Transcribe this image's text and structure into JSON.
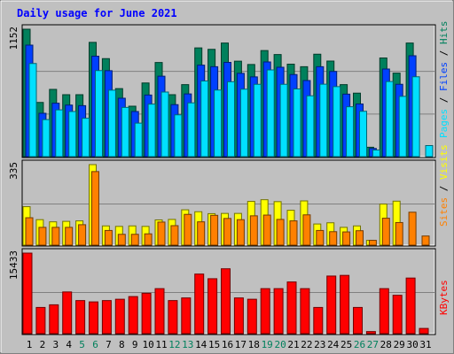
{
  "title": "Daily usage for June 2021",
  "colors": {
    "background": "#C0C0C0",
    "panel": "#C0C0C0",
    "title": "#0000FF",
    "hits": "#00805C",
    "files": "#0040FF",
    "pages": "#00E0FF",
    "visits": "#FFFF00",
    "sites": "#FF8000",
    "kbytes": "#FF0000",
    "day_weekday": "#000000",
    "day_weekend": "#00805C"
  },
  "chart_data": [
    {
      "type": "bar",
      "name": "hits-files-pages",
      "ymax_label": "1152",
      "ylim": [
        0,
        1152
      ],
      "legend": [
        {
          "label": "Hits",
          "color": "#00805C"
        },
        {
          "label": "Files",
          "color": "#0040FF"
        },
        {
          "label": "Pages",
          "color": "#00E0FF"
        }
      ],
      "series": [
        {
          "name": "Hits",
          "values": [
            1152,
            490,
            608,
            560,
            560,
            1033,
            886,
            615,
            456,
            666,
            851,
            560,
            651,
            983,
            970,
            1027,
            863,
            833,
            959,
            923,
            836,
            813,
            926,
            864,
            651,
            574,
            85,
            892,
            755,
            1027,
            0
          ]
        },
        {
          "name": "Files",
          "values": [
            1008,
            392,
            483,
            466,
            461,
            908,
            777,
            528,
            408,
            557,
            727,
            470,
            567,
            827,
            813,
            852,
            753,
            721,
            856,
            808,
            742,
            688,
            813,
            770,
            565,
            476,
            74,
            792,
            654,
            912,
            0
          ]
        },
        {
          "name": "Pages",
          "values": [
            842,
            335,
            423,
            408,
            347,
            778,
            601,
            445,
            303,
            475,
            584,
            378,
            486,
            684,
            602,
            677,
            610,
            654,
            784,
            654,
            612,
            550,
            655,
            633,
            451,
            410,
            60,
            679,
            545,
            722,
            100
          ]
        }
      ]
    },
    {
      "type": "bar",
      "name": "visits-sites",
      "ymax_label": "335",
      "ylim": [
        0,
        335
      ],
      "legend": [
        {
          "label": "Visits",
          "color": "#FFFF00"
        },
        {
          "label": "Sites",
          "color": "#FF8000"
        }
      ],
      "series": [
        {
          "name": "Visits",
          "values": [
            160,
            106,
            97,
            99,
            101,
            335,
            80,
            78,
            80,
            78,
            105,
            107,
            147,
            139,
            131,
            132,
            132,
            182,
            189,
            181,
            145,
            184,
            88,
            93,
            74,
            80,
            20,
            171,
            183,
            0,
            0
          ]
        },
        {
          "name": "Sites",
          "values": [
            114,
            74,
            74,
            74,
            85,
            306,
            61,
            45,
            45,
            47,
            96,
            81,
            128,
            97,
            124,
            111,
            106,
            122,
            125,
            107,
            101,
            126,
            61,
            56,
            55,
            60,
            20,
            112,
            94,
            137,
            38
          ]
        }
      ]
    },
    {
      "type": "bar",
      "name": "kbytes",
      "ymax_label": "15433",
      "ylim": [
        0,
        15433
      ],
      "legend": [
        {
          "label": "KBytes",
          "color": "#FF0000"
        }
      ],
      "series": [
        {
          "name": "KBytes",
          "values": [
            15433,
            5019,
            5527,
            7994,
            6338,
            6084,
            6338,
            6592,
            7105,
            7739,
            8626,
            6338,
            6845,
            11418,
            10528,
            12432,
            6845,
            6592,
            8626,
            8626,
            9906,
            8626,
            5019,
            11038,
            11164,
            5019,
            400,
            8626,
            7353,
            10654,
            1000
          ]
        }
      ]
    }
  ],
  "x_labels": [
    {
      "label": "1",
      "weekend": false
    },
    {
      "label": "2",
      "weekend": false
    },
    {
      "label": "3",
      "weekend": false
    },
    {
      "label": "4",
      "weekend": false
    },
    {
      "label": "5",
      "weekend": true
    },
    {
      "label": "6",
      "weekend": true
    },
    {
      "label": "7",
      "weekend": false
    },
    {
      "label": "8",
      "weekend": false
    },
    {
      "label": "9",
      "weekend": false
    },
    {
      "label": "10",
      "weekend": false
    },
    {
      "label": "11",
      "weekend": false
    },
    {
      "label": "12",
      "weekend": true
    },
    {
      "label": "13",
      "weekend": true
    },
    {
      "label": "14",
      "weekend": false
    },
    {
      "label": "15",
      "weekend": false
    },
    {
      "label": "16",
      "weekend": false
    },
    {
      "label": "17",
      "weekend": false
    },
    {
      "label": "18",
      "weekend": false
    },
    {
      "label": "19",
      "weekend": true
    },
    {
      "label": "20",
      "weekend": true
    },
    {
      "label": "21",
      "weekend": false
    },
    {
      "label": "22",
      "weekend": false
    },
    {
      "label": "23",
      "weekend": false
    },
    {
      "label": "24",
      "weekend": false
    },
    {
      "label": "25",
      "weekend": false
    },
    {
      "label": "26",
      "weekend": true
    },
    {
      "label": "27",
      "weekend": true
    },
    {
      "label": "28",
      "weekend": false
    },
    {
      "label": "29",
      "weekend": false
    },
    {
      "label": "30",
      "weekend": false
    },
    {
      "label": "31",
      "weekend": false
    }
  ]
}
